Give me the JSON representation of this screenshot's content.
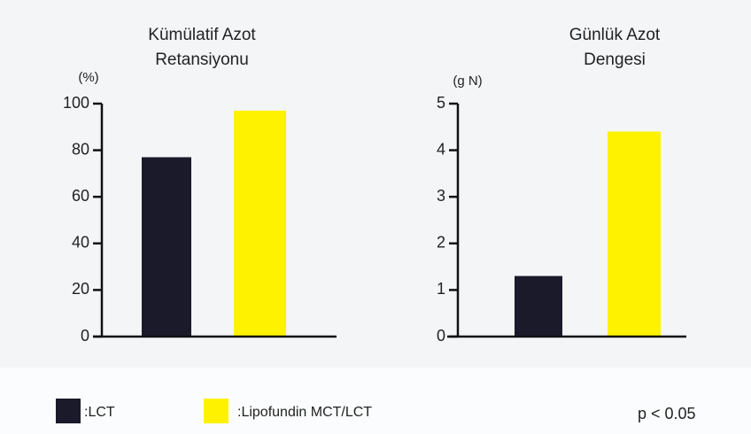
{
  "chart_data": [
    {
      "type": "bar",
      "title": [
        "Kümülatif Azot",
        "Retansiyonu"
      ],
      "ylabel": "(%)",
      "values": [
        77,
        97
      ],
      "ylim": [
        0,
        100
      ],
      "yticks": [
        0,
        20,
        40,
        60,
        80,
        100
      ]
    },
    {
      "type": "bar",
      "title": [
        "Günlük Azot",
        "Dengesi"
      ],
      "ylabel": "(g N)",
      "values": [
        1.3,
        4.4
      ],
      "ylim": [
        0,
        5
      ],
      "yticks": [
        0,
        1,
        2,
        3,
        4,
        5
      ]
    }
  ],
  "legend": {
    "entries": [
      {
        "name": ":LCT",
        "color": "#1b1a2b"
      },
      {
        "name": ":Lipofundin MCT/LCT",
        "color": "#fff200"
      }
    ]
  },
  "note": "p < 0.05"
}
